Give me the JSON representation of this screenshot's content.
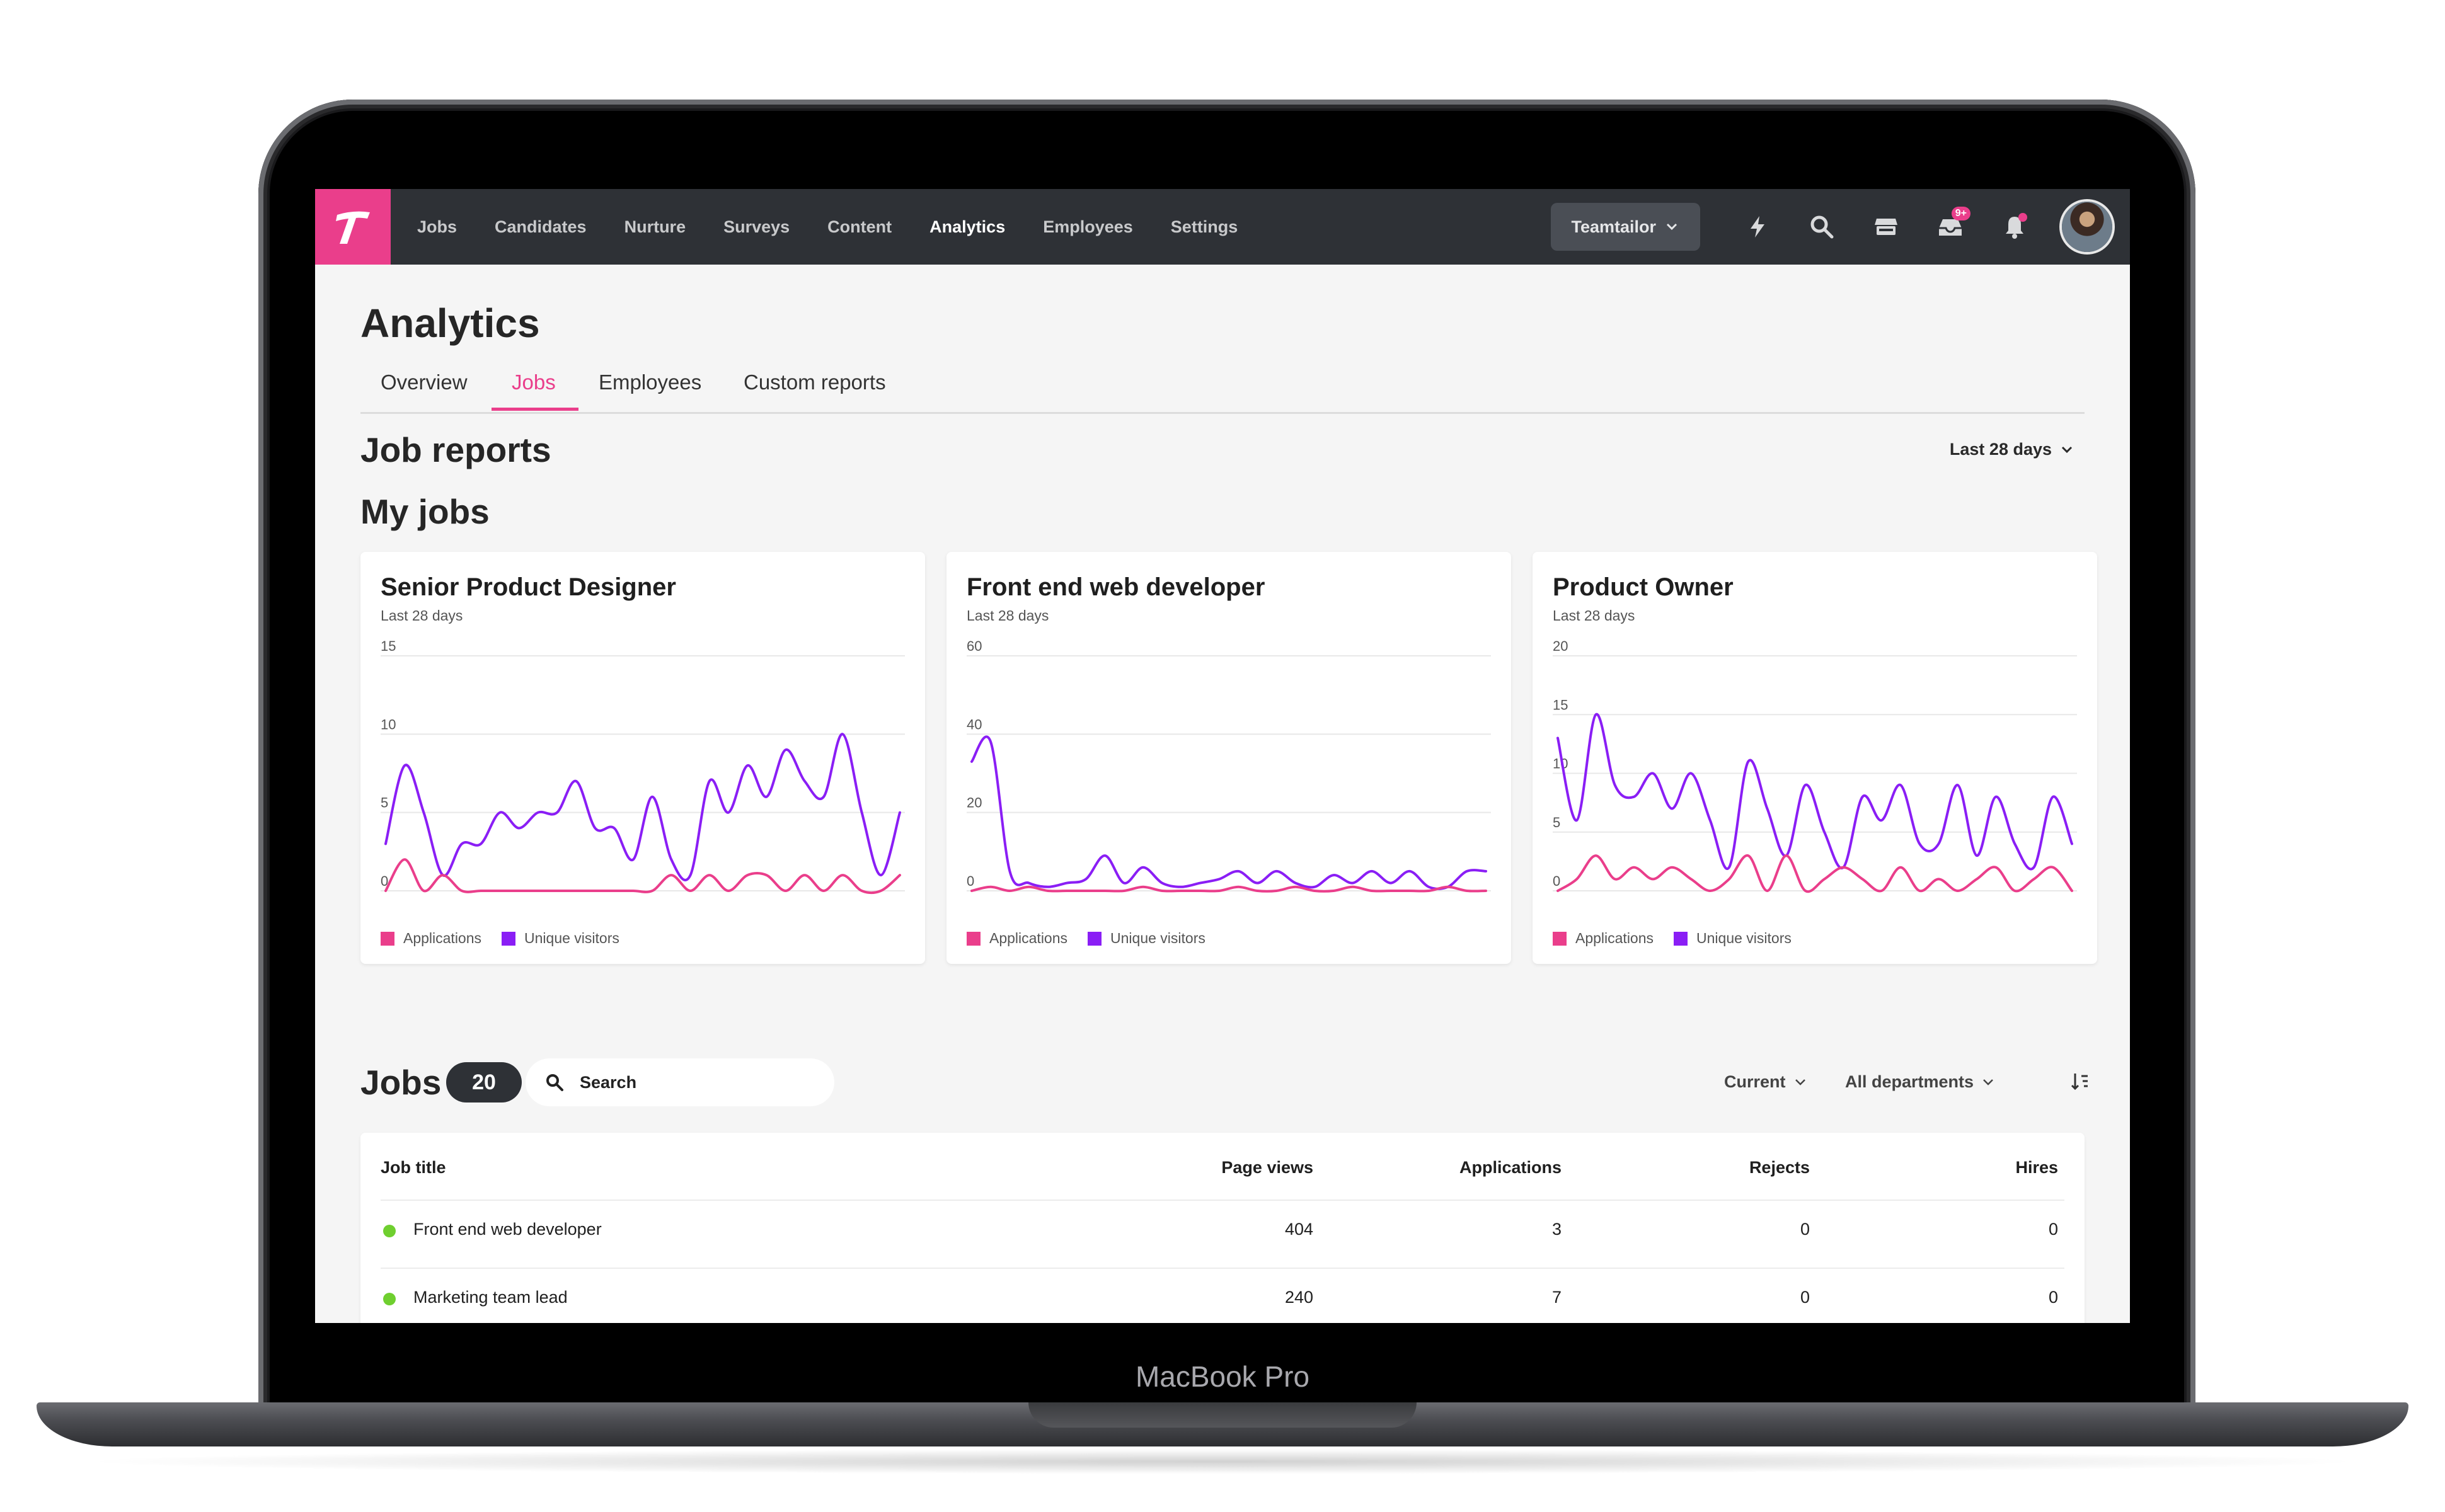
{
  "device_label": "MacBook Pro",
  "nav": {
    "logo_letter": "T",
    "items": [
      "Jobs",
      "Candidates",
      "Nurture",
      "Surveys",
      "Content",
      "Analytics",
      "Employees",
      "Settings"
    ],
    "active": "Analytics",
    "company": "Teamtailor",
    "inbox_badge": "9+",
    "icons": [
      "lightning-icon",
      "search-icon",
      "store-icon",
      "inbox-icon",
      "bell-icon"
    ]
  },
  "page": {
    "title": "Analytics",
    "tabs": [
      "Overview",
      "Jobs",
      "Employees",
      "Custom reports"
    ],
    "active_tab": "Jobs",
    "job_reports_title": "Job reports",
    "range": "Last 28 days",
    "my_jobs_title": "My jobs"
  },
  "cards": [
    {
      "title": "Senior Product Designer",
      "subtitle": "Last 28 days"
    },
    {
      "title": "Front end web developer",
      "subtitle": "Last 28 days"
    },
    {
      "title": "Product Owner",
      "subtitle": "Last 28 days"
    }
  ],
  "colors": {
    "applications": "#ea3e8b",
    "unique_visitors": "#8a1ef5",
    "accent": "#ea3e8b",
    "nav_bg": "#2e3136"
  },
  "chart_data": [
    {
      "type": "line",
      "title": "Senior Product Designer",
      "subtitle": "Last 28 days",
      "x": [
        1,
        2,
        3,
        4,
        5,
        6,
        7,
        8,
        9,
        10,
        11,
        12,
        13,
        14,
        15,
        16,
        17,
        18,
        19,
        20,
        21,
        22,
        23,
        24,
        25,
        26,
        27,
        28
      ],
      "y_ticks": [
        0,
        5,
        10,
        15
      ],
      "ylim": [
        0,
        15
      ],
      "legend": "bottom-left",
      "series": [
        {
          "name": "Applications",
          "color": "#ea3e8b",
          "values": [
            0,
            2,
            0,
            1,
            0,
            0,
            0,
            0,
            0,
            0,
            0,
            0,
            0,
            0,
            0,
            1,
            0,
            1,
            0,
            1,
            1,
            0,
            1,
            0,
            1,
            0,
            0,
            1
          ]
        },
        {
          "name": "Unique visitors",
          "color": "#8a1ef5",
          "values": [
            3,
            8,
            5,
            1,
            3,
            3,
            5,
            4,
            5,
            5,
            7,
            4,
            4,
            2,
            6,
            2,
            1,
            7,
            5,
            8,
            6,
            9,
            7,
            6,
            10,
            5,
            1,
            5
          ]
        }
      ]
    },
    {
      "type": "line",
      "title": "Front end web developer",
      "subtitle": "Last 28 days",
      "x": [
        1,
        2,
        3,
        4,
        5,
        6,
        7,
        8,
        9,
        10,
        11,
        12,
        13,
        14,
        15,
        16,
        17,
        18,
        19,
        20,
        21,
        22,
        23,
        24,
        25,
        26,
        27,
        28
      ],
      "y_ticks": [
        0,
        20,
        40,
        60
      ],
      "ylim": [
        0,
        60
      ],
      "legend": "bottom-left",
      "series": [
        {
          "name": "Applications",
          "color": "#ea3e8b",
          "values": [
            0,
            1,
            0,
            1,
            0,
            0,
            0,
            0,
            0,
            1,
            0,
            0,
            0,
            0,
            1,
            0,
            0,
            1,
            0,
            0,
            1,
            0,
            0,
            0,
            0,
            1,
            0,
            0
          ]
        },
        {
          "name": "Unique visitors",
          "color": "#8a1ef5",
          "values": [
            33,
            38,
            5,
            2,
            1,
            2,
            3,
            9,
            2,
            6,
            2,
            1,
            2,
            3,
            5,
            2,
            5,
            2,
            1,
            4,
            2,
            5,
            2,
            5,
            1,
            1,
            5,
            5
          ]
        }
      ]
    },
    {
      "type": "line",
      "title": "Product Owner",
      "subtitle": "Last 28 days",
      "x": [
        1,
        2,
        3,
        4,
        5,
        6,
        7,
        8,
        9,
        10,
        11,
        12,
        13,
        14,
        15,
        16,
        17,
        18,
        19,
        20,
        21,
        22,
        23,
        24,
        25,
        26,
        27,
        28
      ],
      "y_ticks": [
        0,
        5,
        10,
        15,
        20
      ],
      "ylim": [
        0,
        20
      ],
      "legend": "bottom-left",
      "series": [
        {
          "name": "Applications",
          "color": "#ea3e8b",
          "values": [
            0,
            1,
            3,
            1,
            2,
            1,
            2,
            1,
            0,
            1,
            3,
            0,
            3,
            0,
            1,
            2,
            1,
            0,
            2,
            0,
            1,
            0,
            1,
            2,
            0,
            1,
            2,
            0
          ]
        },
        {
          "name": "Unique visitors",
          "color": "#8a1ef5",
          "values": [
            13,
            6,
            15,
            9,
            8,
            10,
            7,
            10,
            6,
            2,
            11,
            7,
            3,
            9,
            5,
            2,
            8,
            6,
            9,
            4,
            4,
            9,
            3,
            8,
            4,
            2,
            8,
            4
          ]
        }
      ]
    }
  ],
  "jobs": {
    "title": "Jobs",
    "count": "20",
    "search_placeholder": "Search",
    "filter_status": "Current",
    "filter_department": "All departments",
    "columns": [
      "Job title",
      "Page views",
      "Applications",
      "Rejects",
      "Hires"
    ],
    "rows": [
      {
        "title": "Front end web developer",
        "page_views": "404",
        "applications": "3",
        "rejects": "0",
        "hires": "0"
      },
      {
        "title": "Marketing team lead",
        "page_views": "240",
        "applications": "7",
        "rejects": "0",
        "hires": "0"
      }
    ]
  }
}
